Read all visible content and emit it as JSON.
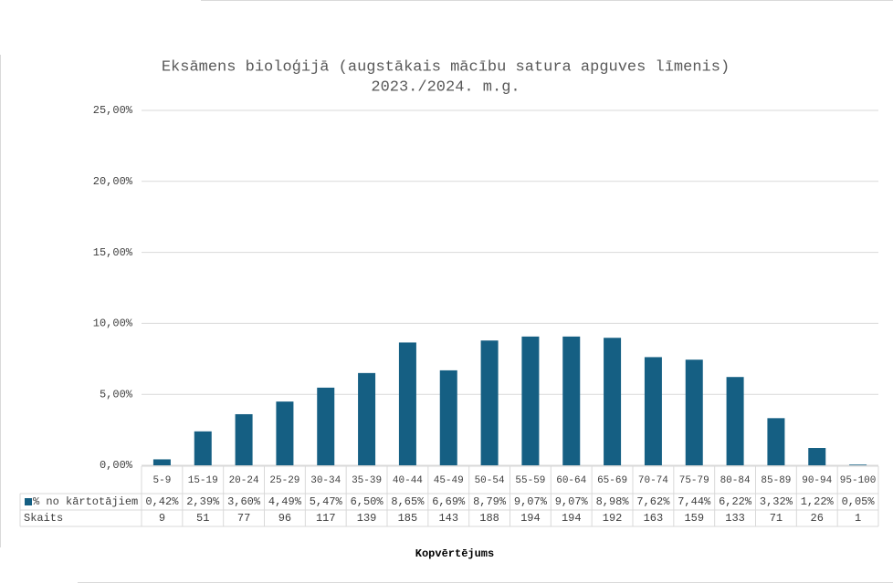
{
  "chart_data": {
    "type": "bar",
    "title": "Eksāmens bioloģijā  (augstākais mācību satura apguves līmenis)",
    "subtitle": "2023./2024. m.g.",
    "x_label": "Kopvērtējums",
    "categories": [
      "5-9",
      "15-19",
      "20-24",
      "25-29",
      "30-34",
      "35-39",
      "40-44",
      "45-49",
      "50-54",
      "55-59",
      "60-64",
      "65-69",
      "70-74",
      "75-79",
      "80-84",
      "85-89",
      "90-94",
      "95-100"
    ],
    "series": [
      {
        "name": "% no kārtotājiem",
        "color": "#155f83",
        "values": [
          0.42,
          2.39,
          3.6,
          4.49,
          5.47,
          6.5,
          8.65,
          6.69,
          8.79,
          9.07,
          9.07,
          8.98,
          7.62,
          7.44,
          6.22,
          3.32,
          1.22,
          0.05
        ],
        "value_labels": [
          "0,42%",
          "2,39%",
          "3,60%",
          "4,49%",
          "5,47%",
          "6,50%",
          "8,65%",
          "6,69%",
          "8,79%",
          "9,07%",
          "9,07%",
          "8,98%",
          "7,62%",
          "7,44%",
          "6,22%",
          "3,32%",
          "1,22%",
          "0,05%"
        ]
      }
    ],
    "table_rows": [
      {
        "name": "Skaits",
        "values": [
          9,
          51,
          77,
          96,
          117,
          139,
          185,
          143,
          188,
          194,
          194,
          192,
          163,
          159,
          133,
          71,
          26,
          1
        ]
      }
    ],
    "ylim": [
      0,
      25
    ],
    "yticks": [
      {
        "value": 0,
        "label": "0,00%"
      },
      {
        "value": 5,
        "label": "5,00%"
      },
      {
        "value": 10,
        "label": "10,00%"
      },
      {
        "value": 15,
        "label": "15,00%"
      },
      {
        "value": 20,
        "label": "20,00%"
      },
      {
        "value": 25,
        "label": "25,00%"
      }
    ],
    "grid": true
  }
}
